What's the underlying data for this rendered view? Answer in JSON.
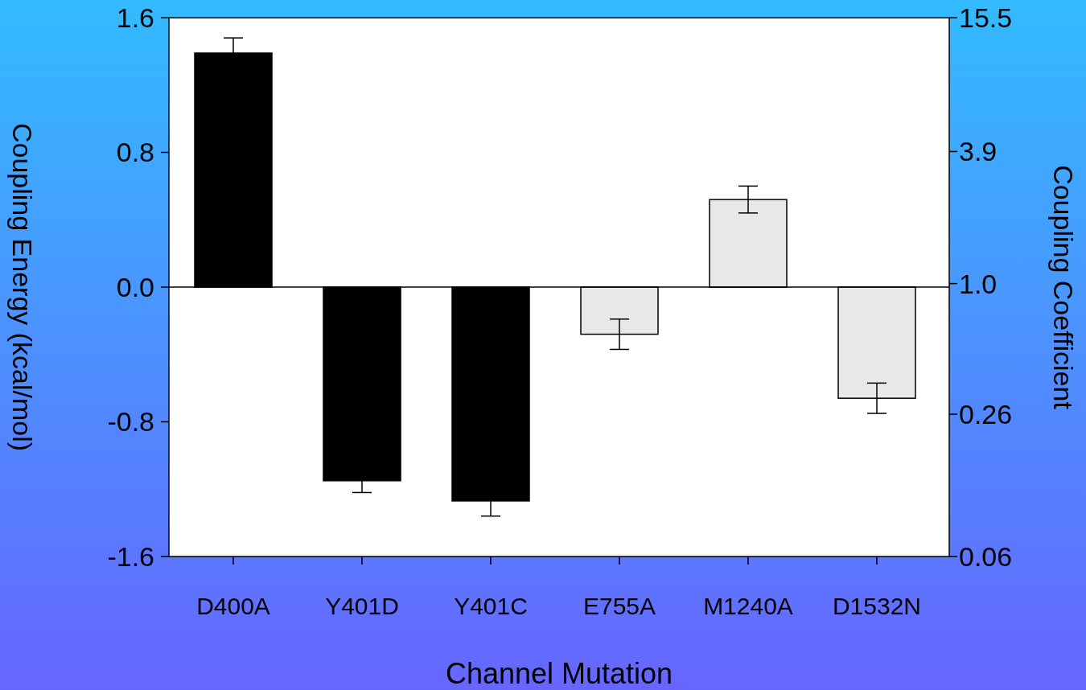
{
  "chart_data": {
    "type": "bar",
    "xlabel": "Channel Mutation",
    "ylabel": "Coupling Energy (kcal/mol)",
    "y2label": "Coupling Coefficient",
    "categories": [
      "D400A",
      "Y401D",
      "Y401C",
      "E755A",
      "M1240A",
      "D1532N"
    ],
    "values": [
      1.39,
      -1.15,
      -1.27,
      -0.28,
      0.52,
      -0.66
    ],
    "errors": [
      0.09,
      0.07,
      0.09,
      0.09,
      0.08,
      0.09
    ],
    "colors": [
      "#000000",
      "#000000",
      "#000000",
      "#e8e8e8",
      "#e8e8e8",
      "#e8e8e8"
    ],
    "ylim": [
      -1.6,
      1.6
    ],
    "yticks": [
      {
        "value": 1.6,
        "label": "1.6"
      },
      {
        "value": 0.8,
        "label": "0.8"
      },
      {
        "value": 0,
        "label": "0.0"
      },
      {
        "value": -0.8,
        "label": "-0.8"
      },
      {
        "value": -1.6,
        "label": "-1.6"
      }
    ],
    "log": "y2",
    "y2lim": [
      0.06,
      15.5
    ],
    "y2ticks": [
      15.5,
      3.9,
      {
        "value": 1,
        "label": "1.0"
      },
      0.26,
      0.06
    ]
  }
}
